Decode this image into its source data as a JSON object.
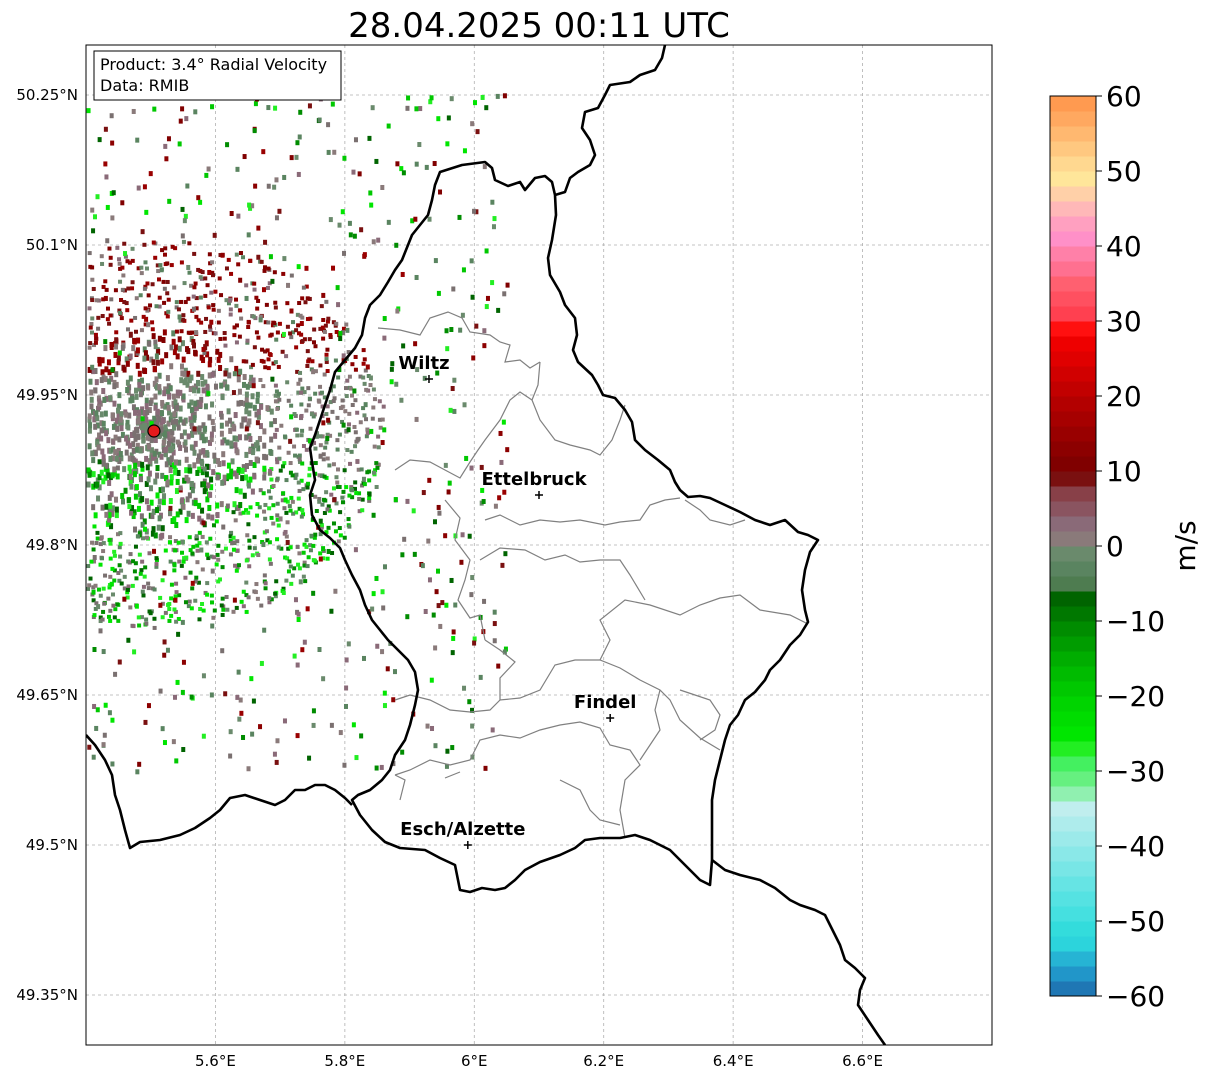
{
  "title": "28.04.2025 00:11 UTC",
  "info_box": {
    "product": "Product: 3.4° Radial Velocity",
    "source": "Data: RMIB"
  },
  "lon_ticks": [
    {
      "value": 5.6,
      "label": "5.6°E"
    },
    {
      "value": 5.8,
      "label": "5.8°E"
    },
    {
      "value": 6.0,
      "label": "6°E"
    },
    {
      "value": 6.2,
      "label": "6.2°E"
    },
    {
      "value": 6.4,
      "label": "6.4°E"
    },
    {
      "value": 6.6,
      "label": "6.6°E"
    }
  ],
  "lat_ticks": [
    {
      "value": 50.25,
      "label": "50.25°N"
    },
    {
      "value": 50.1,
      "label": "50.1°N"
    },
    {
      "value": 49.95,
      "label": "49.95°N"
    },
    {
      "value": 49.8,
      "label": "49.8°N"
    },
    {
      "value": 49.65,
      "label": "49.65°N"
    },
    {
      "value": 49.5,
      "label": "49.5°N"
    },
    {
      "value": 49.35,
      "label": "49.35°N"
    }
  ],
  "extent": {
    "lon_min": 5.4,
    "lon_max": 6.8,
    "lat_min": 49.3,
    "lat_max": 50.3
  },
  "cities": [
    {
      "name": "Wiltz",
      "lon": 5.93,
      "lat": 49.966
    },
    {
      "name": "Ettelbruck",
      "lon": 6.1,
      "lat": 49.85
    },
    {
      "name": "Findel",
      "lon": 6.21,
      "lat": 49.627
    },
    {
      "name": "Esch/Alzette",
      "lon": 5.99,
      "lat": 49.5
    }
  ],
  "radar_site": {
    "lon": 5.505,
    "lat": 49.914,
    "color": "#e41a1c"
  },
  "colorbar": {
    "label": "m/s",
    "min": -60,
    "max": 60,
    "ticks": [
      {
        "value": 60,
        "label": "60"
      },
      {
        "value": 50,
        "label": "50"
      },
      {
        "value": 40,
        "label": "40"
      },
      {
        "value": 30,
        "label": "30"
      },
      {
        "value": 20,
        "label": "20"
      },
      {
        "value": 10,
        "label": "10"
      },
      {
        "value": 0,
        "label": "0"
      },
      {
        "value": -10,
        "label": "−10"
      },
      {
        "value": -20,
        "label": "−20"
      },
      {
        "value": -30,
        "label": "−30"
      },
      {
        "value": -40,
        "label": "−40"
      },
      {
        "value": -50,
        "label": "−50"
      },
      {
        "value": -60,
        "label": "−60"
      }
    ],
    "stops": [
      {
        "from": -60,
        "to": -58,
        "color": "#1f77b4"
      },
      {
        "from": -58,
        "to": -56,
        "color": "#2196c9"
      },
      {
        "from": -56,
        "to": -54,
        "color": "#26b4d4"
      },
      {
        "from": -54,
        "to": -52,
        "color": "#2cd4dc"
      },
      {
        "from": -52,
        "to": -50,
        "color": "#33dcdc"
      },
      {
        "from": -50,
        "to": -48,
        "color": "#45e0e0"
      },
      {
        "from": -48,
        "to": -46,
        "color": "#55e2e2"
      },
      {
        "from": -46,
        "to": -44,
        "color": "#66e4e4"
      },
      {
        "from": -44,
        "to": -42,
        "color": "#78e6e6"
      },
      {
        "from": -42,
        "to": -40,
        "color": "#8ae8e8"
      },
      {
        "from": -40,
        "to": -38,
        "color": "#9ceaea"
      },
      {
        "from": -38,
        "to": -36,
        "color": "#aeecec"
      },
      {
        "from": -36,
        "to": -34,
        "color": "#c0eeee"
      },
      {
        "from": -34,
        "to": -32,
        "color": "#90f0b0"
      },
      {
        "from": -32,
        "to": -30,
        "color": "#66f080"
      },
      {
        "from": -30,
        "to": -28,
        "color": "#44f060"
      },
      {
        "from": -28,
        "to": -26,
        "color": "#22ee22"
      },
      {
        "from": -26,
        "to": -24,
        "color": "#00e600"
      },
      {
        "from": -24,
        "to": -22,
        "color": "#00dd00"
      },
      {
        "from": -22,
        "to": -20,
        "color": "#00d400"
      },
      {
        "from": -20,
        "to": -18,
        "color": "#00c800"
      },
      {
        "from": -18,
        "to": -16,
        "color": "#00bb00"
      },
      {
        "from": -16,
        "to": -14,
        "color": "#00ad00"
      },
      {
        "from": -14,
        "to": -12,
        "color": "#009c00"
      },
      {
        "from": -12,
        "to": -10,
        "color": "#008c00"
      },
      {
        "from": -10,
        "to": -8,
        "color": "#007800"
      },
      {
        "from": -8,
        "to": -6,
        "color": "#006400"
      },
      {
        "from": -6,
        "to": -4,
        "color": "#4e7c50"
      },
      {
        "from": -4,
        "to": -2,
        "color": "#5a8460"
      },
      {
        "from": -2,
        "to": 0,
        "color": "#6a8a6c"
      },
      {
        "from": 0,
        "to": 2,
        "color": "#8a7a7a"
      },
      {
        "from": 2,
        "to": 4,
        "color": "#8a6a78"
      },
      {
        "from": 4,
        "to": 6,
        "color": "#8a5460"
      },
      {
        "from": 6,
        "to": 8,
        "color": "#884048"
      },
      {
        "from": 8,
        "to": 10,
        "color": "#7a1010"
      },
      {
        "from": 10,
        "to": 12,
        "color": "#800000"
      },
      {
        "from": 12,
        "to": 14,
        "color": "#8c0000"
      },
      {
        "from": 14,
        "to": 16,
        "color": "#990000"
      },
      {
        "from": 16,
        "to": 18,
        "color": "#a60000"
      },
      {
        "from": 18,
        "to": 20,
        "color": "#b30000"
      },
      {
        "from": 20,
        "to": 22,
        "color": "#c20000"
      },
      {
        "from": 22,
        "to": 24,
        "color": "#d10000"
      },
      {
        "from": 24,
        "to": 26,
        "color": "#e00000"
      },
      {
        "from": 26,
        "to": 28,
        "color": "#ee0000"
      },
      {
        "from": 28,
        "to": 30,
        "color": "#ff1010"
      },
      {
        "from": 30,
        "to": 32,
        "color": "#ff4050"
      },
      {
        "from": 32,
        "to": 34,
        "color": "#ff5060"
      },
      {
        "from": 34,
        "to": 36,
        "color": "#ff6070"
      },
      {
        "from": 36,
        "to": 38,
        "color": "#ff7090"
      },
      {
        "from": 38,
        "to": 40,
        "color": "#ff80a8"
      },
      {
        "from": 40,
        "to": 42,
        "color": "#ff90c8"
      },
      {
        "from": 42,
        "to": 44,
        "color": "#ffa0c0"
      },
      {
        "from": 44,
        "to": 46,
        "color": "#ffb8b8"
      },
      {
        "from": 46,
        "to": 48,
        "color": "#ffd0a8"
      },
      {
        "from": 48,
        "to": 50,
        "color": "#ffe69a"
      },
      {
        "from": 50,
        "to": 52,
        "color": "#ffd890"
      },
      {
        "from": 52,
        "to": 54,
        "color": "#ffc880"
      },
      {
        "from": 54,
        "to": 56,
        "color": "#ffb870"
      },
      {
        "from": 56,
        "to": 58,
        "color": "#ffa860"
      },
      {
        "from": 58,
        "to": 60,
        "color": "#ff9a50"
      }
    ]
  },
  "colors": {
    "border": "#000000",
    "canton": "#808080",
    "grid": "#b0b0b0"
  }
}
